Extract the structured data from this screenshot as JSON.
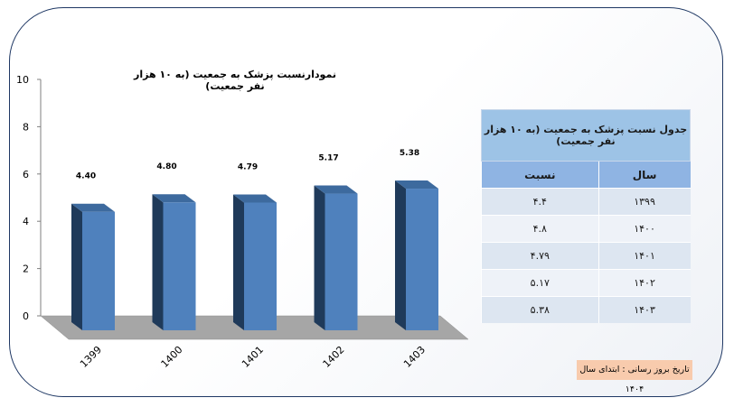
{
  "chart_data": {
    "type": "bar",
    "title": "نمودارنسبت پزشک به جمعیت (به ۱۰ هزار نفر جمعیت)",
    "categories": [
      "1399",
      "1400",
      "1401",
      "1402",
      "1403"
    ],
    "values": [
      4.4,
      4.8,
      4.79,
      5.17,
      5.38
    ],
    "value_labels": [
      "4.40",
      "4.80",
      "4.79",
      "5.17",
      "5.38"
    ],
    "ylim": [
      0,
      10
    ],
    "yticks": [
      "0",
      "2",
      "4",
      "6",
      "8",
      "10"
    ],
    "bar_color": "#4f81bd",
    "bar_dark": "#1f3a5a",
    "bar_top": "#3d6a9e",
    "floor_color": "#a6a6a6",
    "grid": false
  },
  "table": {
    "title": "جدول نسبت پزشک به جمعیت (به ۱۰ هزار نفر جمعیت)",
    "col_year": "سال",
    "col_ratio": "نسبت",
    "rows": [
      {
        "year": "۱۳۹۹",
        "ratio": "۴.۴"
      },
      {
        "year": "۱۴۰۰",
        "ratio": "۴.۸"
      },
      {
        "year": "۱۴۰۱",
        "ratio": "۴.۷۹"
      },
      {
        "year": "۱۴۰۲",
        "ratio": "۵.۱۷"
      },
      {
        "year": "۱۴۰۳",
        "ratio": "۵.۳۸"
      }
    ]
  },
  "note": "تاریخ بروز رسانی : ابتدای سال ۱۴۰۴"
}
